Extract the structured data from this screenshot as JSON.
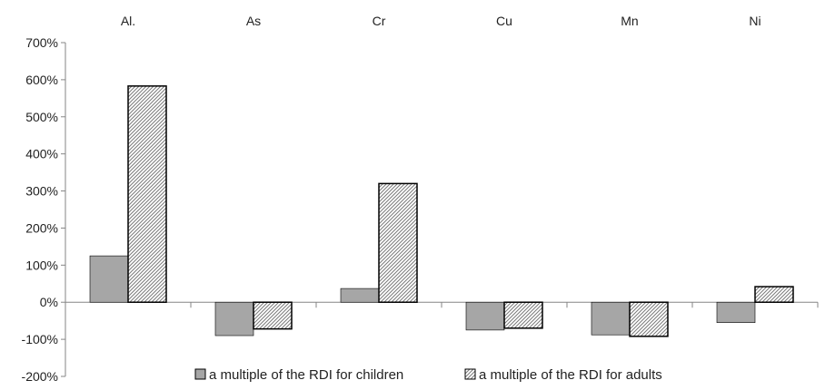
{
  "chart_data": {
    "type": "bar",
    "title": "",
    "xlabel": "",
    "ylabel": "",
    "categories": [
      "Al.",
      "As",
      "Cr",
      "Cu",
      "Mn",
      "Ni"
    ],
    "category_axis_position": "top",
    "series": [
      {
        "name": "a multiple of the RDI for children",
        "fill": "solid",
        "color": "#a6a6a6",
        "values": [
          125,
          -90,
          37,
          -75,
          -88,
          -55
        ]
      },
      {
        "name": "a multiple of the RDI for adults",
        "fill": "diagonal-hatch",
        "color": "#8c8c8c",
        "values": [
          583,
          -72,
          320,
          -70,
          -92,
          42
        ]
      }
    ],
    "ylim": [
      -200,
      700
    ],
    "yticks": [
      -200,
      -100,
      0,
      100,
      200,
      300,
      400,
      500,
      600,
      700
    ],
    "ytick_labels": [
      "-200%",
      "-100%",
      "0%",
      "100%",
      "200%",
      "300%",
      "400%",
      "500%",
      "600%",
      "700%"
    ],
    "y_unit": "%",
    "grid": false,
    "legend_position": "bottom"
  }
}
